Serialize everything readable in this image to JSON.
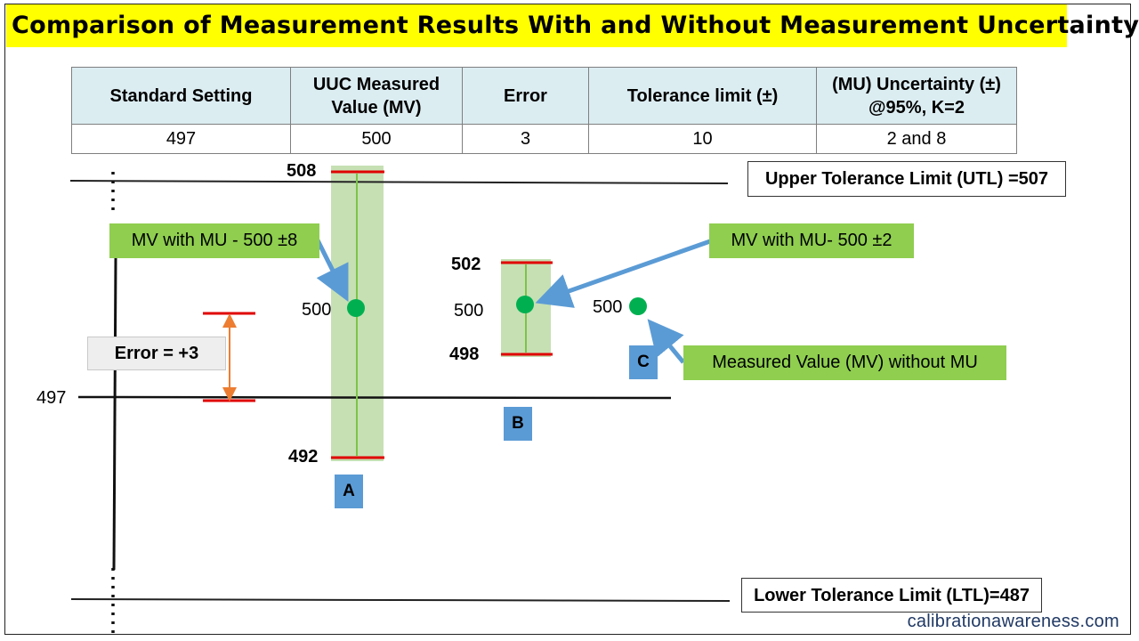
{
  "title": "Comparison of Measurement Results With and Without Measurement Uncertainty",
  "table": {
    "headers": [
      "Standard Setting",
      "UUC Measured\nValue  (MV)",
      "Error",
      "Tolerance limit (±)",
      "(MU) Uncertainty (±)\n@95%, K=2"
    ],
    "row": [
      "497",
      "500",
      "3",
      "10",
      "2 and 8"
    ]
  },
  "limits": {
    "utl_label": "Upper Tolerance Limit (UTL) =507",
    "ltl_label": "Lower Tolerance Limit (LTL)=487"
  },
  "standard": {
    "value_label": "497"
  },
  "error_label": "Error = +3",
  "case_a": {
    "tag": "A",
    "upper": "508",
    "center": "500",
    "lower": "492",
    "callout": "MV with MU - 500 ±8"
  },
  "case_b": {
    "tag": "B",
    "upper": "502",
    "center": "500",
    "lower": "498",
    "callout": "MV with MU- 500 ±2"
  },
  "case_c": {
    "tag": "C",
    "center": "500",
    "callout": "Measured Value (MV) without MU"
  },
  "footer": "calibrationawareness.com",
  "colors": {
    "title_bg": "#ffff00",
    "header_bg": "#dcedf2",
    "band": "#c6e0b4",
    "callout": "#8fce4f",
    "dot": "#00b050",
    "limit_red": "#e00000",
    "arrow": "#5b9bd5",
    "error_arrow": "#ed7d31",
    "tag": "#5b9bd5"
  }
}
